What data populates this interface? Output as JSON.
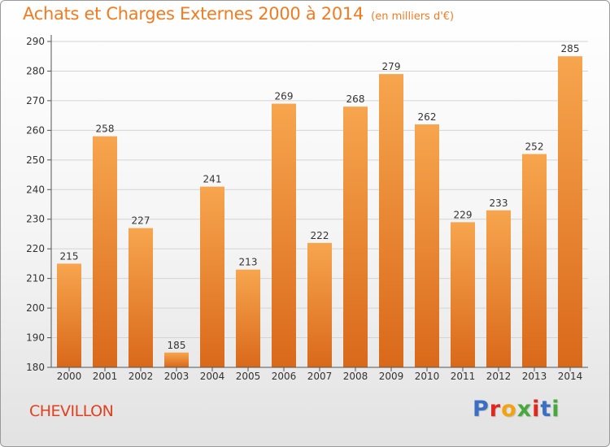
{
  "title": "Achats et Charges Externes 2000 à 2014",
  "subtitle": "(en milliers d'€)",
  "place": "CHEVILLON",
  "logo": {
    "text": "Proxiti",
    "letter_colors": [
      "#3a6fc4",
      "#e2261d",
      "#f2a30f",
      "#47a83c",
      "#e2261d",
      "#3a6fc4",
      "#47a83c"
    ]
  },
  "colors": {
    "bar_top": "#f7a54e",
    "bar_bottom": "#d9691a",
    "title": "#f07c22",
    "place": "#e1401e"
  },
  "chart_data": {
    "type": "bar",
    "title": "Achats et Charges Externes 2000 à 2014",
    "subtitle": "(en milliers d'€)",
    "xlabel": "",
    "ylabel": "",
    "categories": [
      "2000",
      "2001",
      "2002",
      "2003",
      "2004",
      "2005",
      "2006",
      "2007",
      "2008",
      "2009",
      "2010",
      "2011",
      "2012",
      "2013",
      "2014"
    ],
    "values": [
      215,
      258,
      227,
      185,
      241,
      213,
      269,
      222,
      268,
      279,
      262,
      229,
      233,
      252,
      285
    ],
    "ylim": [
      180,
      290
    ],
    "yticks": [
      180,
      190,
      200,
      210,
      220,
      230,
      240,
      250,
      260,
      270,
      280,
      290
    ],
    "grid": true,
    "data_labels": true
  }
}
